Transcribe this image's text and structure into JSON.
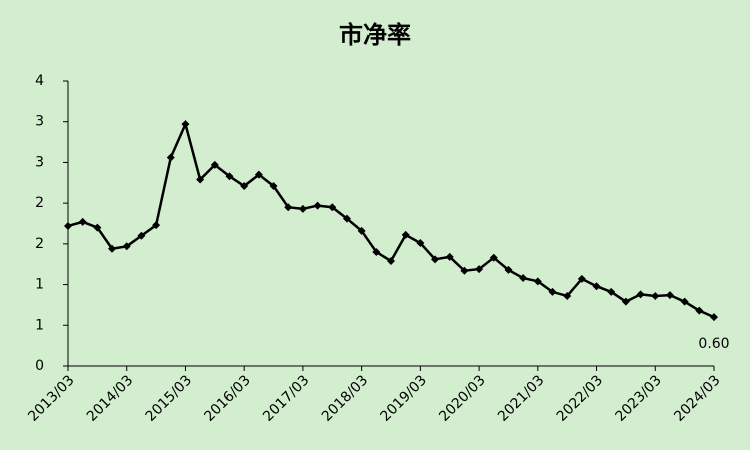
{
  "chart_data": {
    "type": "line",
    "title": "市净率",
    "categories": [
      "2013/03",
      null,
      null,
      null,
      "2014/03",
      null,
      null,
      null,
      "2015/03",
      null,
      null,
      null,
      "2016/03",
      null,
      null,
      null,
      "2017/03",
      null,
      null,
      null,
      "2018/03",
      null,
      null,
      null,
      "2019/03",
      null,
      null,
      null,
      "2020/03",
      null,
      null,
      null,
      "2021/03",
      null,
      null,
      null,
      "2022/03",
      null,
      null,
      null,
      "2023/03",
      null,
      null,
      null,
      "2024/03"
    ],
    "values": [
      1.72,
      1.77,
      1.7,
      1.44,
      1.47,
      1.6,
      1.73,
      2.56,
      2.97,
      2.29,
      2.47,
      2.33,
      2.21,
      2.35,
      2.21,
      1.95,
      1.93,
      1.97,
      1.95,
      1.81,
      1.66,
      1.4,
      1.29,
      1.61,
      1.51,
      1.31,
      1.34,
      1.17,
      1.19,
      1.33,
      1.18,
      1.08,
      1.04,
      0.91,
      0.86,
      1.07,
      0.98,
      0.91,
      0.79,
      0.88,
      0.86,
      0.87,
      0.79,
      0.68,
      0.6
    ],
    "value_labels": [
      null,
      null,
      null,
      null,
      null,
      null,
      null,
      null,
      null,
      null,
      null,
      null,
      null,
      null,
      null,
      null,
      null,
      null,
      null,
      null,
      null,
      null,
      null,
      null,
      null,
      null,
      null,
      null,
      null,
      null,
      null,
      null,
      null,
      null,
      null,
      null,
      null,
      null,
      null,
      null,
      null,
      null,
      null,
      null,
      "0.60"
    ],
    "color": "#000000",
    "ylim": [
      0,
      3.5
    ],
    "yticks": [
      0,
      {
        "value": 0.5,
        "label": "1"
      },
      1,
      {
        "value": 1.5,
        "label": "2"
      },
      2,
      {
        "value": 2.5,
        "label": "3"
      },
      3,
      {
        "value": 3.5,
        "label": "4"
      }
    ],
    "grid": false
  }
}
